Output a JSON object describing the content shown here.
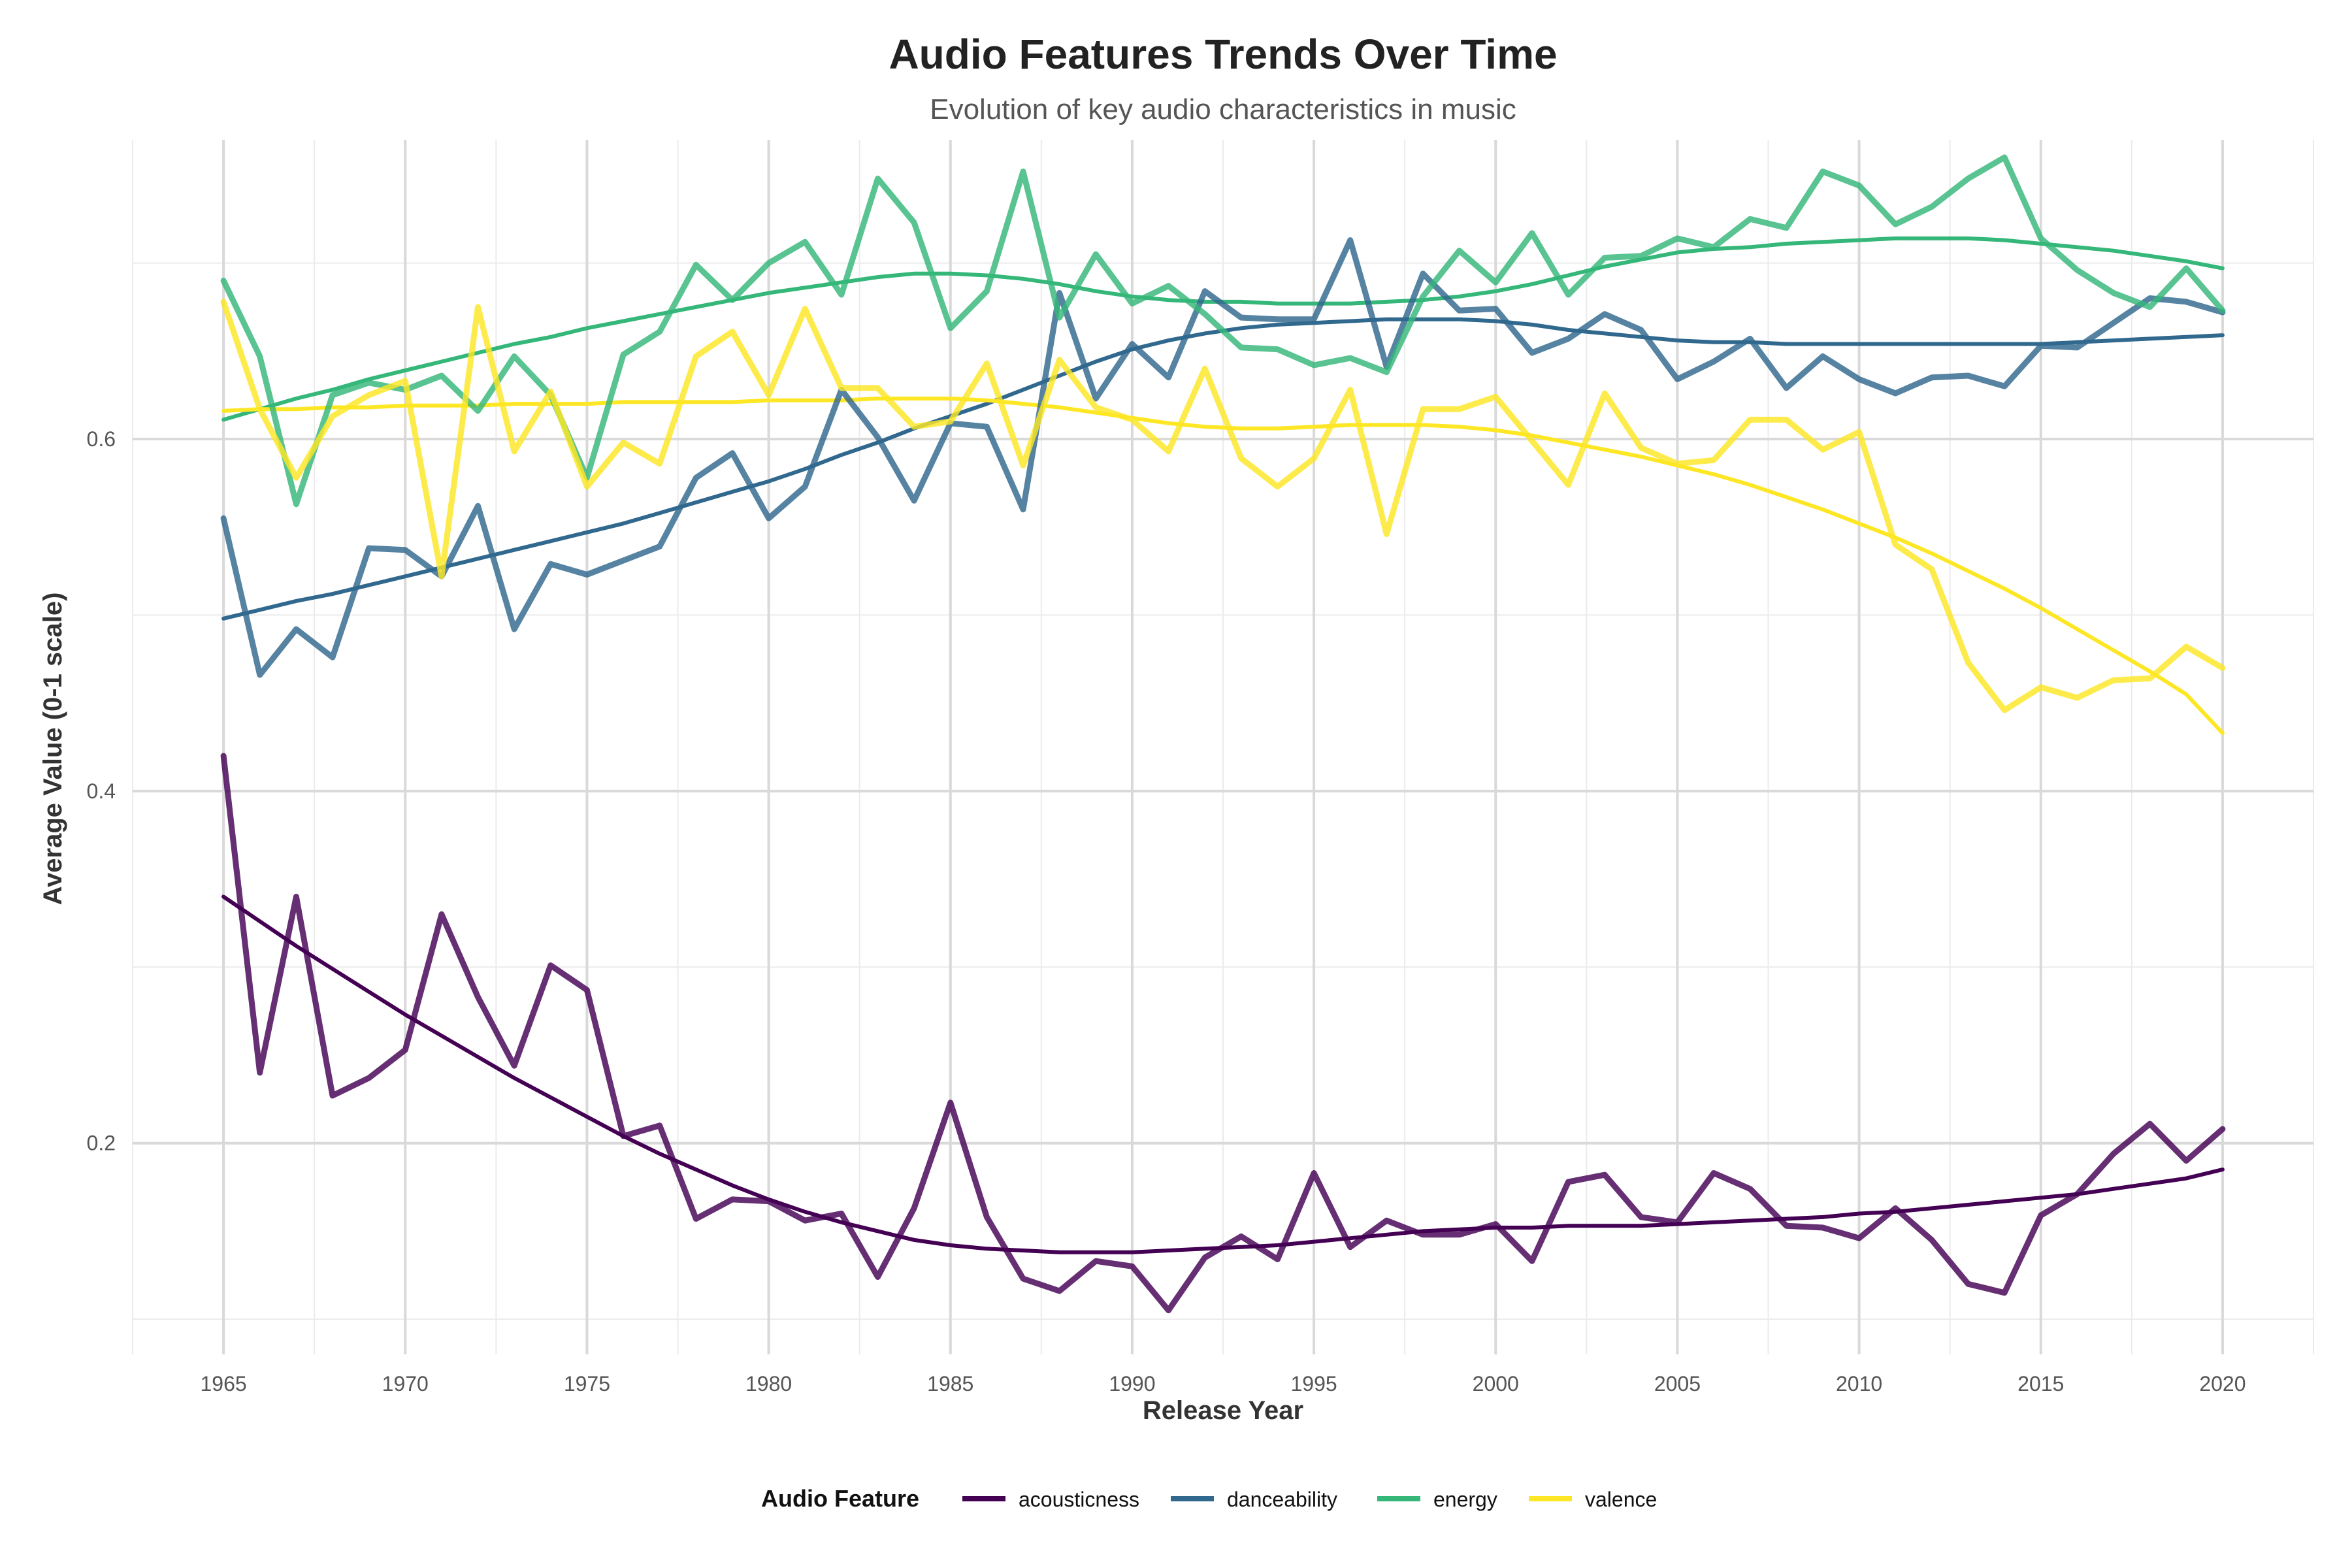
{
  "chart_data": {
    "type": "line",
    "title": "Audio Features Trends Over Time",
    "subtitle": "Evolution of key audio characteristics in music",
    "xlabel": "Release Year",
    "ylabel": "Average Value (0-1 scale)",
    "xlim": [
      1962.5,
      2022.5
    ],
    "ylim": [
      0.08,
      0.77
    ],
    "x_ticks": [
      1965,
      1970,
      1975,
      1980,
      1985,
      1990,
      1995,
      2000,
      2005,
      2010,
      2015,
      2020
    ],
    "y_ticks": [
      0.2,
      0.4,
      0.6
    ],
    "y_tick_labels": [
      "0.2",
      "0.4",
      "0.6"
    ],
    "grid": true,
    "legend_title": "Audio Feature",
    "legend_position": "bottom",
    "x": [
      1965,
      1966,
      1967,
      1968,
      1969,
      1970,
      1971,
      1972,
      1973,
      1974,
      1975,
      1976,
      1977,
      1978,
      1979,
      1980,
      1981,
      1982,
      1983,
      1984,
      1985,
      1986,
      1987,
      1988,
      1989,
      1990,
      1991,
      1992,
      1993,
      1994,
      1995,
      1996,
      1997,
      1998,
      1999,
      2000,
      2001,
      2002,
      2003,
      2004,
      2005,
      2006,
      2007,
      2008,
      2009,
      2010,
      2011,
      2012,
      2013,
      2014,
      2015,
      2016,
      2017,
      2018,
      2019,
      2020
    ],
    "series": [
      {
        "name": "acousticness",
        "color": "#440154",
        "values": [
          0.42,
          0.24,
          0.34,
          0.227,
          0.237,
          0.253,
          0.33,
          0.283,
          0.244,
          0.301,
          0.287,
          0.204,
          0.21,
          0.157,
          0.168,
          0.167,
          0.156,
          0.16,
          0.124,
          0.163,
          0.223,
          0.158,
          0.123,
          0.116,
          0.133,
          0.13,
          0.105,
          0.135,
          0.147,
          0.134,
          0.183,
          0.141,
          0.156,
          0.148,
          0.148,
          0.154,
          0.133,
          0.178,
          0.182,
          0.158,
          0.155,
          0.183,
          0.174,
          0.153,
          0.152,
          0.146,
          0.163,
          0.145,
          0.12,
          0.115,
          0.159,
          0.171,
          0.194,
          0.211,
          0.19,
          0.208
        ],
        "trend": [
          0.34,
          0.326,
          0.312,
          0.299,
          0.286,
          0.273,
          0.261,
          0.249,
          0.237,
          0.226,
          0.215,
          0.204,
          0.194,
          0.185,
          0.176,
          0.168,
          0.161,
          0.155,
          0.15,
          0.145,
          0.142,
          0.14,
          0.139,
          0.138,
          0.138,
          0.138,
          0.139,
          0.14,
          0.141,
          0.142,
          0.144,
          0.146,
          0.148,
          0.15,
          0.151,
          0.152,
          0.152,
          0.153,
          0.153,
          0.153,
          0.154,
          0.155,
          0.156,
          0.157,
          0.158,
          0.16,
          0.161,
          0.163,
          0.165,
          0.167,
          0.169,
          0.171,
          0.174,
          0.177,
          0.18,
          0.185
        ]
      },
      {
        "name": "danceability",
        "color": "#31688e",
        "values": [
          0.555,
          0.466,
          0.492,
          0.476,
          0.538,
          0.537,
          0.522,
          0.562,
          0.492,
          0.529,
          0.523,
          0.531,
          0.539,
          0.578,
          0.592,
          0.555,
          0.573,
          0.628,
          0.601,
          0.565,
          0.609,
          0.607,
          0.56,
          0.683,
          0.623,
          0.654,
          0.635,
          0.684,
          0.669,
          0.668,
          0.668,
          0.713,
          0.641,
          0.694,
          0.673,
          0.674,
          0.649,
          0.657,
          0.671,
          0.662,
          0.634,
          0.644,
          0.657,
          0.629,
          0.647,
          0.634,
          0.626,
          0.635,
          0.636,
          0.63,
          0.653,
          0.652,
          0.666,
          0.68,
          0.678,
          0.672
        ],
        "trend": [
          0.498,
          0.503,
          0.508,
          0.512,
          0.517,
          0.522,
          0.527,
          0.532,
          0.537,
          0.542,
          0.547,
          0.552,
          0.558,
          0.564,
          0.57,
          0.576,
          0.583,
          0.591,
          0.598,
          0.606,
          0.613,
          0.62,
          0.628,
          0.636,
          0.644,
          0.651,
          0.656,
          0.66,
          0.663,
          0.665,
          0.666,
          0.667,
          0.668,
          0.668,
          0.668,
          0.667,
          0.665,
          0.662,
          0.66,
          0.658,
          0.656,
          0.655,
          0.655,
          0.654,
          0.654,
          0.654,
          0.654,
          0.654,
          0.654,
          0.654,
          0.654,
          0.655,
          0.656,
          0.657,
          0.658,
          0.659
        ]
      },
      {
        "name": "energy",
        "color": "#35b779",
        "values": [
          0.69,
          0.647,
          0.563,
          0.625,
          0.632,
          0.628,
          0.636,
          0.616,
          0.647,
          0.625,
          0.578,
          0.648,
          0.661,
          0.699,
          0.679,
          0.7,
          0.712,
          0.682,
          0.748,
          0.723,
          0.663,
          0.684,
          0.752,
          0.669,
          0.705,
          0.677,
          0.687,
          0.671,
          0.652,
          0.651,
          0.642,
          0.646,
          0.638,
          0.681,
          0.707,
          0.689,
          0.717,
          0.682,
          0.703,
          0.704,
          0.714,
          0.709,
          0.725,
          0.72,
          0.752,
          0.744,
          0.722,
          0.732,
          0.748,
          0.76,
          0.714,
          0.696,
          0.683,
          0.675,
          0.697,
          0.673
        ],
        "trend": [
          0.611,
          0.617,
          0.623,
          0.628,
          0.634,
          0.639,
          0.644,
          0.649,
          0.654,
          0.658,
          0.663,
          0.667,
          0.671,
          0.675,
          0.679,
          0.683,
          0.686,
          0.689,
          0.692,
          0.694,
          0.694,
          0.693,
          0.691,
          0.688,
          0.684,
          0.681,
          0.679,
          0.678,
          0.678,
          0.677,
          0.677,
          0.677,
          0.678,
          0.679,
          0.681,
          0.684,
          0.688,
          0.693,
          0.698,
          0.702,
          0.706,
          0.708,
          0.709,
          0.711,
          0.712,
          0.713,
          0.714,
          0.714,
          0.714,
          0.713,
          0.711,
          0.709,
          0.707,
          0.704,
          0.701,
          0.697
        ]
      },
      {
        "name": "valence",
        "color": "#fde725",
        "values": [
          0.678,
          0.617,
          0.578,
          0.613,
          0.625,
          0.633,
          0.522,
          0.675,
          0.593,
          0.627,
          0.573,
          0.598,
          0.586,
          0.647,
          0.661,
          0.625,
          0.674,
          0.629,
          0.629,
          0.607,
          0.61,
          0.643,
          0.585,
          0.645,
          0.618,
          0.611,
          0.593,
          0.64,
          0.589,
          0.573,
          0.589,
          0.628,
          0.546,
          0.617,
          0.617,
          0.624,
          0.599,
          0.574,
          0.626,
          0.595,
          0.586,
          0.588,
          0.611,
          0.611,
          0.594,
          0.604,
          0.54,
          0.526,
          0.473,
          0.446,
          0.459,
          0.453,
          0.463,
          0.464,
          0.482,
          0.47
        ],
        "trend": [
          0.616,
          0.617,
          0.617,
          0.618,
          0.618,
          0.619,
          0.619,
          0.619,
          0.62,
          0.62,
          0.62,
          0.621,
          0.621,
          0.621,
          0.621,
          0.622,
          0.622,
          0.622,
          0.623,
          0.623,
          0.623,
          0.622,
          0.62,
          0.618,
          0.615,
          0.612,
          0.609,
          0.607,
          0.606,
          0.606,
          0.607,
          0.608,
          0.608,
          0.608,
          0.607,
          0.605,
          0.602,
          0.598,
          0.594,
          0.59,
          0.585,
          0.58,
          0.574,
          0.567,
          0.56,
          0.552,
          0.544,
          0.535,
          0.525,
          0.515,
          0.504,
          0.492,
          0.48,
          0.468,
          0.455,
          0.433
        ]
      }
    ]
  }
}
